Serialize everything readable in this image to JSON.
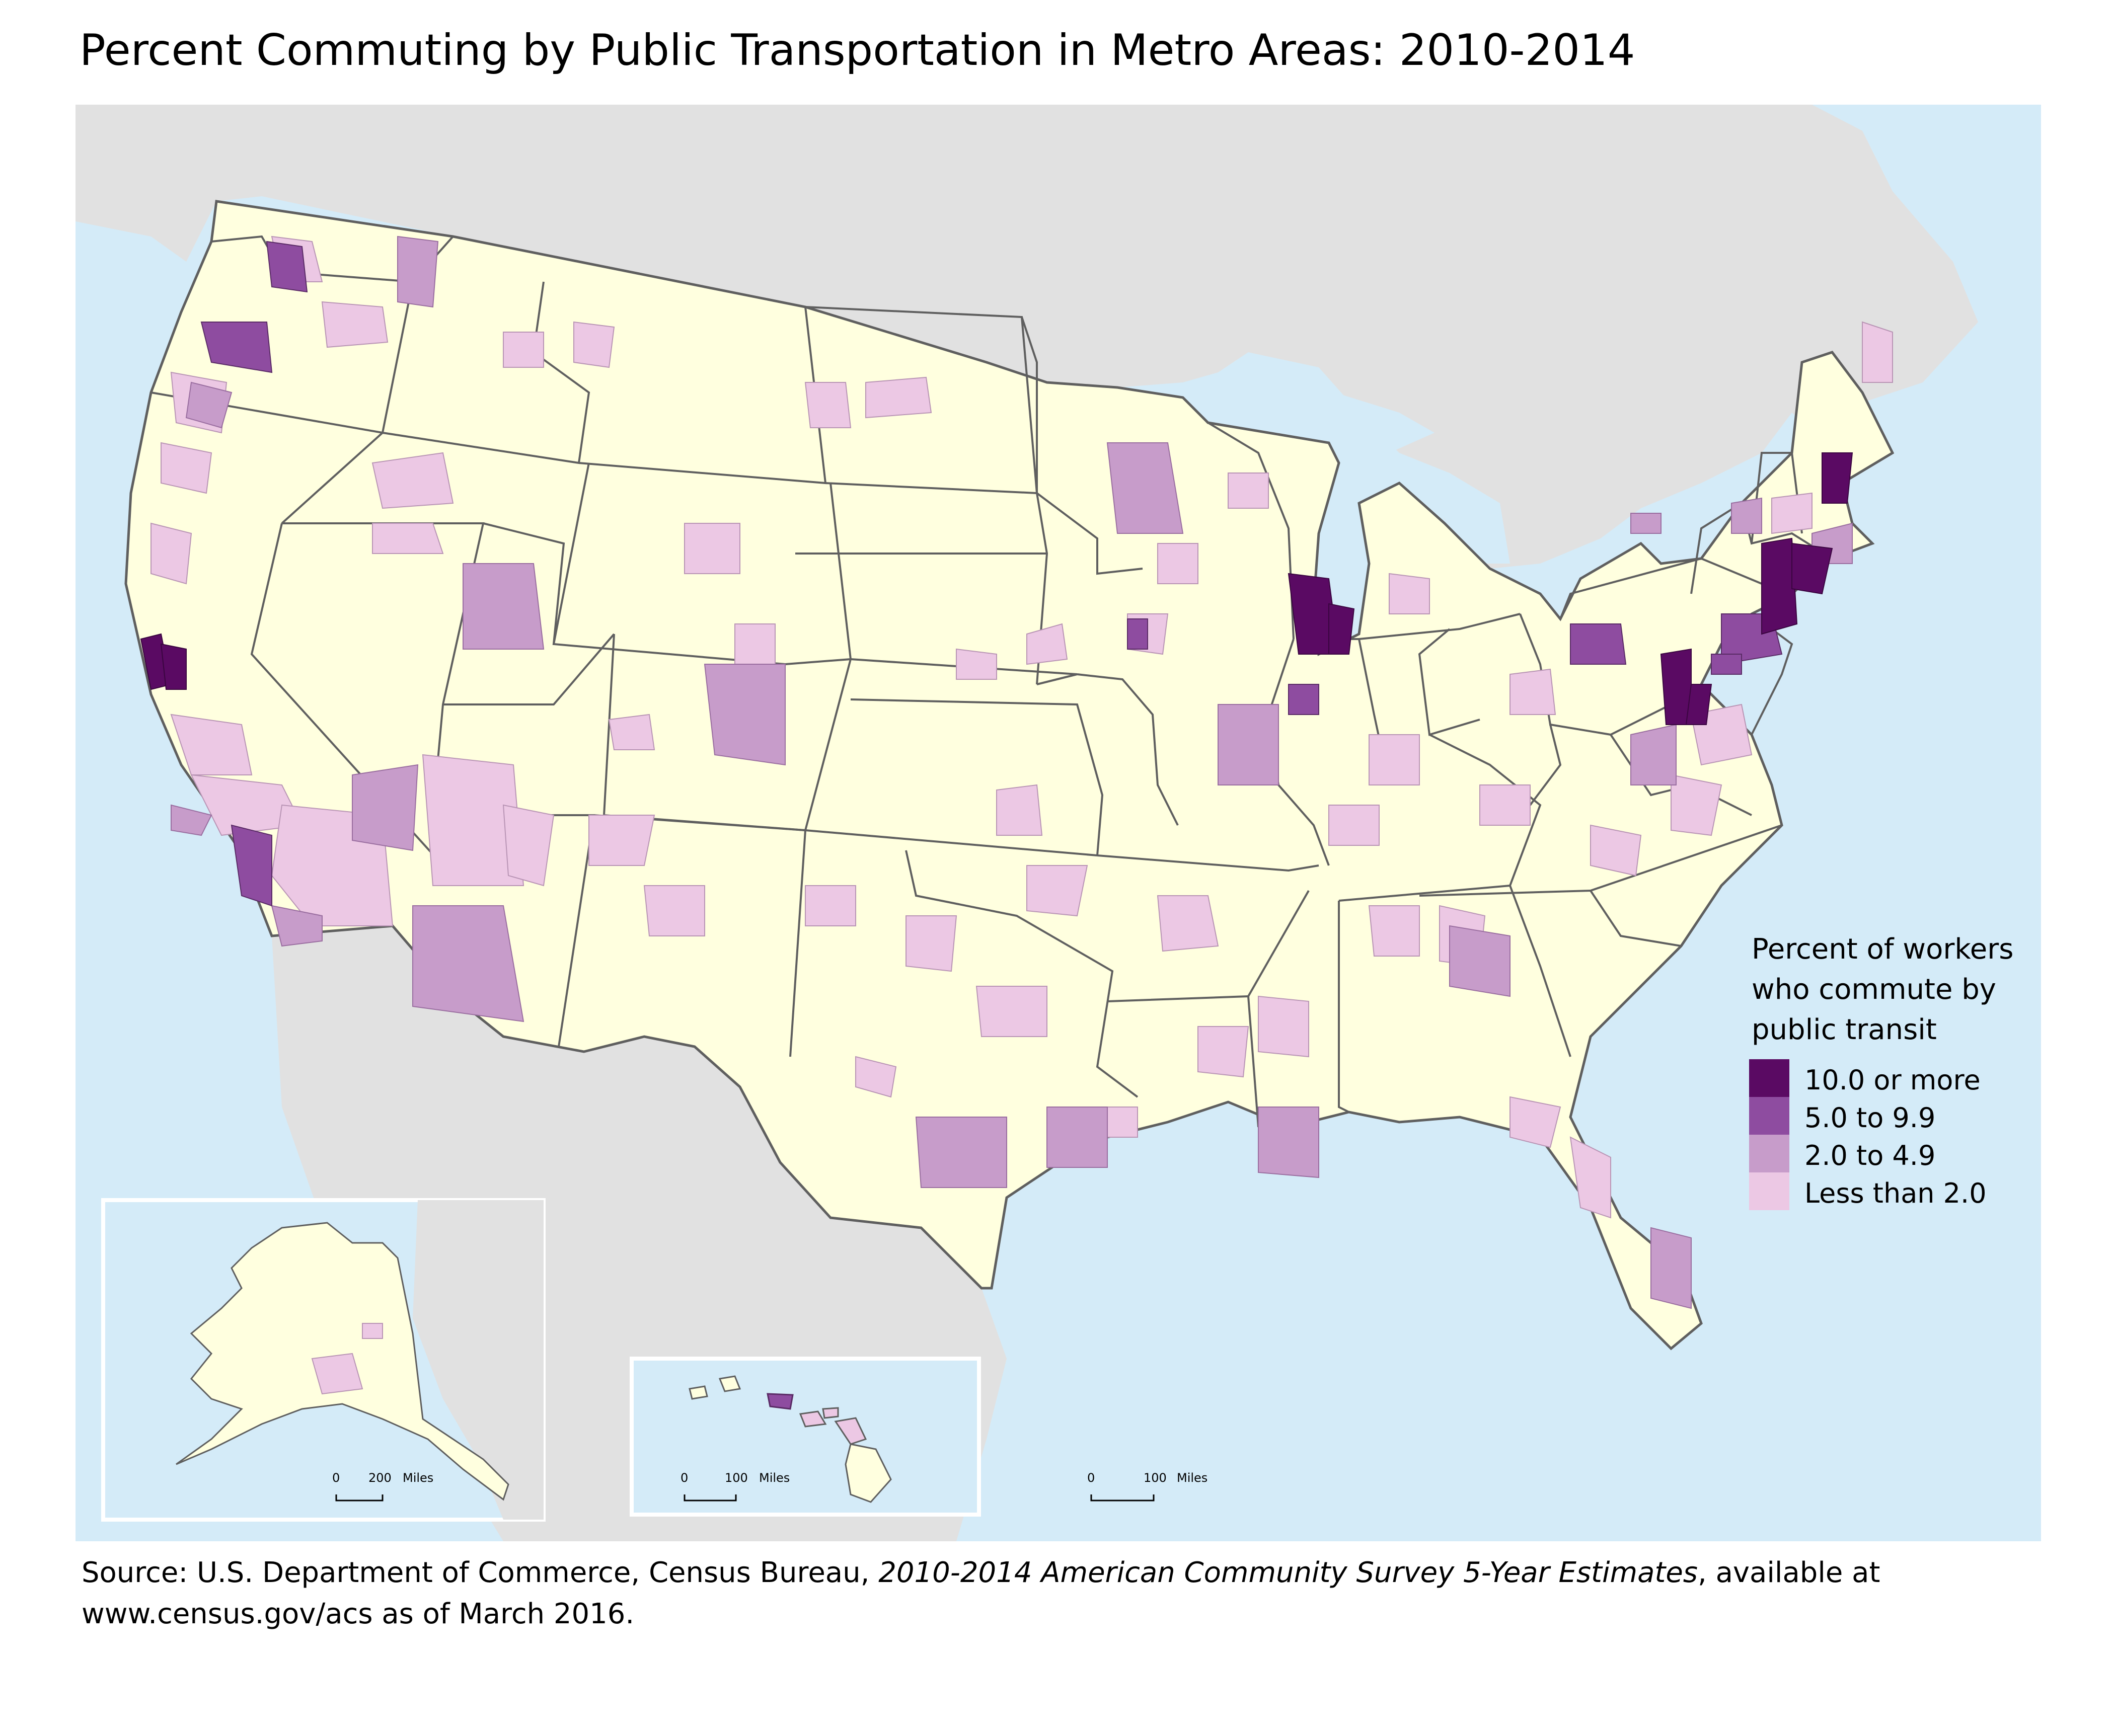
{
  "title": "Percent Commuting by Public Transportation in Metro Areas: 2010-2014",
  "legend": {
    "title_lines": [
      "Percent of workers",
      "who commute by",
      "public transit"
    ],
    "classes": [
      {
        "label": "10.0 or more",
        "color": "#5a0a63"
      },
      {
        "label": "5.0 to 9.9",
        "color": "#8e4ca0"
      },
      {
        "label": "2.0 to 4.9",
        "color": "#c79cca"
      },
      {
        "label": "Less than 2.0",
        "color": "#ecc8e4"
      }
    ]
  },
  "scale_bars": {
    "alaska": {
      "zero": "0",
      "value": "200",
      "unit": "Miles"
    },
    "hawaii": {
      "zero": "0",
      "value": "100",
      "unit": "Miles"
    },
    "mainland": {
      "zero": "0",
      "value": "100",
      "unit": "Miles"
    }
  },
  "colors": {
    "ocean": "#d4ebf8",
    "land": "#ffffdf",
    "foreign_land": "#e1e1e1",
    "state_border": "#5f5f5f"
  },
  "source": {
    "prefix": "Source: U.S. Department of Commerce, Census Bureau, ",
    "italic": "2010-2014 American Community Survey 5-Year Estimates",
    "suffix_line1": ", available at",
    "line2": "www.census.gov/acs as of March 2016."
  }
}
